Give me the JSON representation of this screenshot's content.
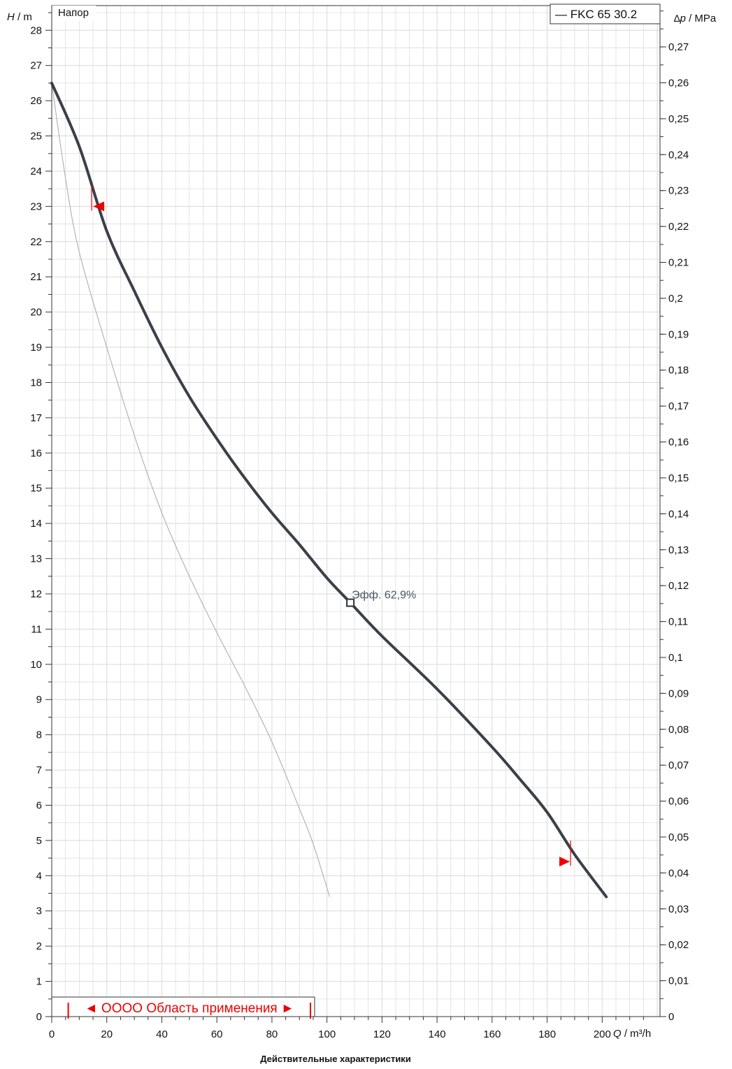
{
  "chart_data": {
    "type": "line",
    "panel_label": "Напор",
    "caption": "Действительные характеристики",
    "legend": {
      "entry": "— FKC 65 30.2",
      "placement": "top-right"
    },
    "y_left": {
      "symbol": "H",
      "unit": " / m",
      "range": [
        0,
        28.7
      ],
      "ticks": [
        0,
        1,
        2,
        3,
        4,
        5,
        6,
        7,
        8,
        9,
        10,
        11,
        12,
        13,
        14,
        15,
        16,
        17,
        18,
        19,
        20,
        21,
        22,
        23,
        24,
        25,
        26,
        27,
        28
      ]
    },
    "y_right": {
      "symbol": "∆p",
      "unit": " / MPa",
      "range": [
        0,
        0.2815
      ],
      "ticks": [
        "0",
        "0,01",
        "0,02",
        "0,03",
        "0,04",
        "0,05",
        "0,06",
        "0,07",
        "0,08",
        "0,09",
        "0,1",
        "0,11",
        "0,12",
        "0,13",
        "0,14",
        "0,15",
        "0,16",
        "0,17",
        "0,18",
        "0,19",
        "0,2",
        "0,21",
        "0,22",
        "0,23",
        "0,24",
        "0,25",
        "0,26",
        "0,27"
      ]
    },
    "x": {
      "symbol": "Q",
      "unit": " / m³/h",
      "range": [
        0,
        221
      ],
      "ticks": [
        0,
        20,
        40,
        60,
        80,
        100,
        120,
        140,
        160,
        180,
        200
      ]
    },
    "grid": true,
    "series": [
      {
        "name": "FKC 65 30.2",
        "color": "#3a4049",
        "points": [
          [
            0,
            26.5
          ],
          [
            10,
            24.7
          ],
          [
            20,
            22.3
          ],
          [
            30,
            20.6
          ],
          [
            40,
            19.0
          ],
          [
            50,
            17.6
          ],
          [
            60,
            16.4
          ],
          [
            70,
            15.3
          ],
          [
            80,
            14.3
          ],
          [
            90,
            13.4
          ],
          [
            100,
            12.45
          ],
          [
            108.5,
            11.75
          ],
          [
            120,
            10.8
          ],
          [
            140,
            9.3
          ],
          [
            160,
            7.65
          ],
          [
            170,
            6.75
          ],
          [
            180,
            5.8
          ],
          [
            190,
            4.6
          ],
          [
            201.5,
            3.4
          ]
        ]
      },
      {
        "color": "#b4b4b4",
        "points": [
          [
            0,
            26.5
          ],
          [
            5,
            23.8
          ],
          [
            10,
            21.7
          ],
          [
            20,
            19.0
          ],
          [
            30,
            16.5
          ],
          [
            40,
            14.3
          ],
          [
            50,
            12.5
          ],
          [
            60,
            10.9
          ],
          [
            70,
            9.4
          ],
          [
            80,
            7.8
          ],
          [
            90,
            5.9
          ],
          [
            95,
            4.9
          ],
          [
            101,
            3.4
          ]
        ]
      }
    ],
    "efficiency_marker": {
      "label": "Эфф.  62,9%",
      "q": 108.5,
      "h": 11.75
    },
    "range_markers": [
      {
        "q": 14.5,
        "h": 23.0
      },
      {
        "q": 188.5,
        "h": 4.4
      }
    ],
    "application_range": {
      "label": "◄ OOOO Область применения ►",
      "q_start": 6,
      "q_end": 94
    },
    "colors": {
      "grid": "#d9d9d9",
      "axis": "#333333",
      "marker": "#ee0000"
    }
  }
}
